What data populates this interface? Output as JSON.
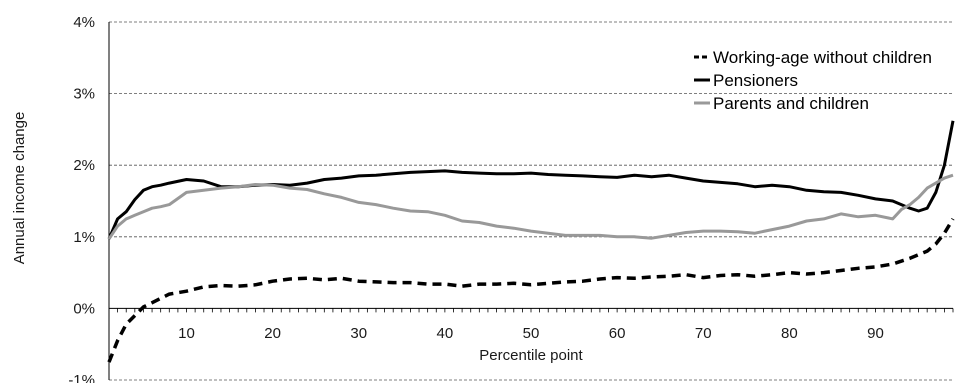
{
  "chart_data": {
    "type": "line",
    "xlabel": "Percentile point",
    "ylabel": "Annual income change",
    "xlim": [
      1,
      99
    ],
    "ylim": [
      -1,
      4
    ],
    "x_ticks": [
      {
        "value": 10,
        "label": "10"
      },
      {
        "value": 20,
        "label": "20"
      },
      {
        "value": 30,
        "label": "30"
      },
      {
        "value": 40,
        "label": "40"
      },
      {
        "value": 50,
        "label": "50"
      },
      {
        "value": 60,
        "label": "60"
      },
      {
        "value": 70,
        "label": "70"
      },
      {
        "value": 80,
        "label": "80"
      },
      {
        "value": 90,
        "label": "90"
      }
    ],
    "y_ticks": [
      {
        "value": -1,
        "label": "-1%"
      },
      {
        "value": 0,
        "label": "0%"
      },
      {
        "value": 1,
        "label": "1%"
      },
      {
        "value": 2,
        "label": "2%"
      },
      {
        "value": 3,
        "label": "3%"
      },
      {
        "value": 4,
        "label": "4%"
      }
    ],
    "grid": "horizontal dashed",
    "legend_position": "top-right",
    "series": [
      {
        "name": "Working-age without children",
        "style": "dashed",
        "color": "#000000",
        "x": [
          1,
          2,
          3,
          4,
          5,
          6,
          7,
          8,
          10,
          12,
          14,
          16,
          18,
          20,
          22,
          24,
          26,
          28,
          30,
          32,
          34,
          36,
          38,
          40,
          42,
          44,
          46,
          48,
          50,
          52,
          54,
          56,
          58,
          60,
          62,
          64,
          66,
          68,
          70,
          72,
          74,
          76,
          78,
          80,
          82,
          84,
          86,
          88,
          90,
          92,
          94,
          96,
          97,
          98,
          99
        ],
        "values": [
          -0.75,
          -0.45,
          -0.22,
          -0.1,
          0.02,
          0.08,
          0.14,
          0.2,
          0.24,
          0.3,
          0.32,
          0.31,
          0.33,
          0.38,
          0.41,
          0.42,
          0.4,
          0.42,
          0.38,
          0.37,
          0.36,
          0.36,
          0.34,
          0.34,
          0.31,
          0.34,
          0.34,
          0.35,
          0.33,
          0.35,
          0.37,
          0.38,
          0.41,
          0.43,
          0.42,
          0.44,
          0.45,
          0.47,
          0.43,
          0.46,
          0.47,
          0.45,
          0.47,
          0.5,
          0.48,
          0.5,
          0.53,
          0.56,
          0.58,
          0.62,
          0.7,
          0.8,
          0.9,
          1.05,
          1.25
        ]
      },
      {
        "name": "Pensioners",
        "style": "solid",
        "color": "#000000",
        "x": [
          1,
          2,
          3,
          4,
          5,
          6,
          7,
          8,
          10,
          12,
          14,
          16,
          18,
          20,
          22,
          24,
          26,
          28,
          30,
          32,
          34,
          36,
          38,
          40,
          42,
          44,
          46,
          48,
          50,
          52,
          54,
          56,
          58,
          60,
          62,
          64,
          66,
          68,
          70,
          72,
          74,
          76,
          78,
          80,
          82,
          84,
          86,
          88,
          90,
          92,
          93,
          94,
          95,
          96,
          97,
          98,
          99
        ],
        "values": [
          0.97,
          1.25,
          1.35,
          1.52,
          1.65,
          1.7,
          1.72,
          1.75,
          1.8,
          1.78,
          1.7,
          1.7,
          1.72,
          1.73,
          1.72,
          1.75,
          1.8,
          1.82,
          1.85,
          1.86,
          1.88,
          1.9,
          1.91,
          1.92,
          1.9,
          1.89,
          1.88,
          1.88,
          1.89,
          1.87,
          1.86,
          1.85,
          1.84,
          1.83,
          1.86,
          1.84,
          1.86,
          1.82,
          1.78,
          1.76,
          1.74,
          1.7,
          1.72,
          1.7,
          1.65,
          1.63,
          1.62,
          1.58,
          1.53,
          1.5,
          1.45,
          1.4,
          1.36,
          1.4,
          1.62,
          2.0,
          2.62
        ]
      },
      {
        "name": "Parents and children",
        "style": "solid",
        "color": "#999999",
        "x": [
          1,
          2,
          3,
          4,
          5,
          6,
          7,
          8,
          10,
          12,
          14,
          16,
          18,
          20,
          22,
          24,
          26,
          28,
          30,
          32,
          34,
          36,
          38,
          40,
          42,
          44,
          46,
          48,
          50,
          52,
          54,
          56,
          58,
          60,
          62,
          64,
          66,
          68,
          70,
          72,
          74,
          76,
          78,
          80,
          82,
          84,
          86,
          88,
          90,
          92,
          93,
          94,
          95,
          96,
          97,
          98,
          99
        ],
        "values": [
          0.97,
          1.15,
          1.25,
          1.3,
          1.35,
          1.4,
          1.42,
          1.45,
          1.62,
          1.65,
          1.68,
          1.7,
          1.73,
          1.72,
          1.68,
          1.66,
          1.6,
          1.55,
          1.48,
          1.45,
          1.4,
          1.36,
          1.35,
          1.3,
          1.22,
          1.2,
          1.15,
          1.12,
          1.08,
          1.05,
          1.02,
          1.02,
          1.02,
          1.0,
          1.0,
          0.98,
          1.02,
          1.06,
          1.08,
          1.08,
          1.07,
          1.05,
          1.1,
          1.15,
          1.22,
          1.25,
          1.32,
          1.28,
          1.3,
          1.25,
          1.38,
          1.45,
          1.55,
          1.68,
          1.75,
          1.82,
          1.86
        ]
      }
    ]
  }
}
